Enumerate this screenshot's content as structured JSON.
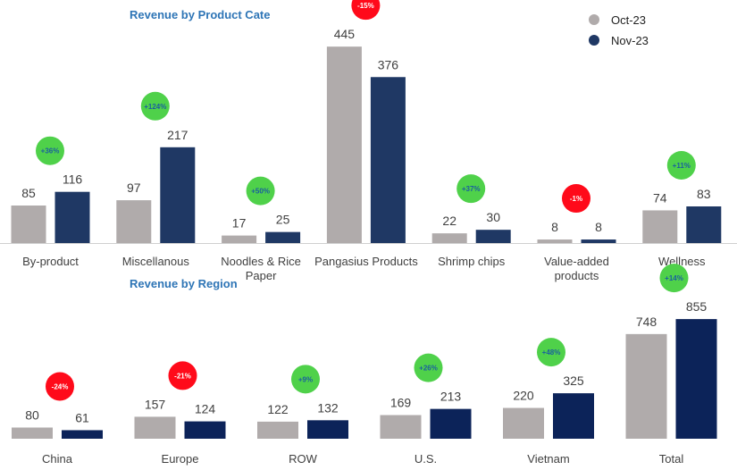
{
  "colors": {
    "oct": "#b0abab",
    "nov": "#1f3864",
    "novRegion": "#0c2359",
    "title": "#2e75b6",
    "up": "#4fd14a",
    "upText": "#1a5f9e",
    "down": "#ff0a1a",
    "downText": "#ffffff"
  },
  "chart_data": [
    {
      "type": "bar",
      "title": "Revenue by Product Cate",
      "categories": [
        [
          "By-product"
        ],
        [
          "Miscellanous"
        ],
        [
          "Noodles & Rice",
          "Paper"
        ],
        [
          "Pangasius Products"
        ],
        [
          "Shrimp chips"
        ],
        [
          "Value-added",
          "products"
        ],
        [
          "Wellness"
        ]
      ],
      "series": [
        {
          "name": "Oct-23",
          "values": [
            85,
            97,
            17,
            445,
            22,
            8,
            74
          ]
        },
        {
          "name": "Nov-23",
          "values": [
            116,
            217,
            25,
            376,
            30,
            8,
            83
          ]
        }
      ],
      "changes": [
        "+36%",
        "+124%",
        "+50%",
        "-15%",
        "+37%",
        "-1%",
        "+11%"
      ],
      "legend": [
        "Oct-23",
        "Nov-23"
      ],
      "legend_position": "top-right",
      "grid": false
    },
    {
      "type": "bar",
      "title": "Revenue by Region",
      "categories": [
        [
          "China"
        ],
        [
          "Europe"
        ],
        [
          "ROW"
        ],
        [
          "U.S."
        ],
        [
          "Vietnam"
        ],
        [
          "Total"
        ]
      ],
      "series": [
        {
          "name": "Oct-23",
          "values": [
            80,
            157,
            122,
            169,
            220,
            748
          ]
        },
        {
          "name": "Nov-23",
          "values": [
            61,
            124,
            132,
            213,
            325,
            855
          ]
        }
      ],
      "changes": [
        "-24%",
        "-21%",
        "+9%",
        "+26%",
        "+48%",
        "+14%"
      ],
      "grid": false
    }
  ]
}
